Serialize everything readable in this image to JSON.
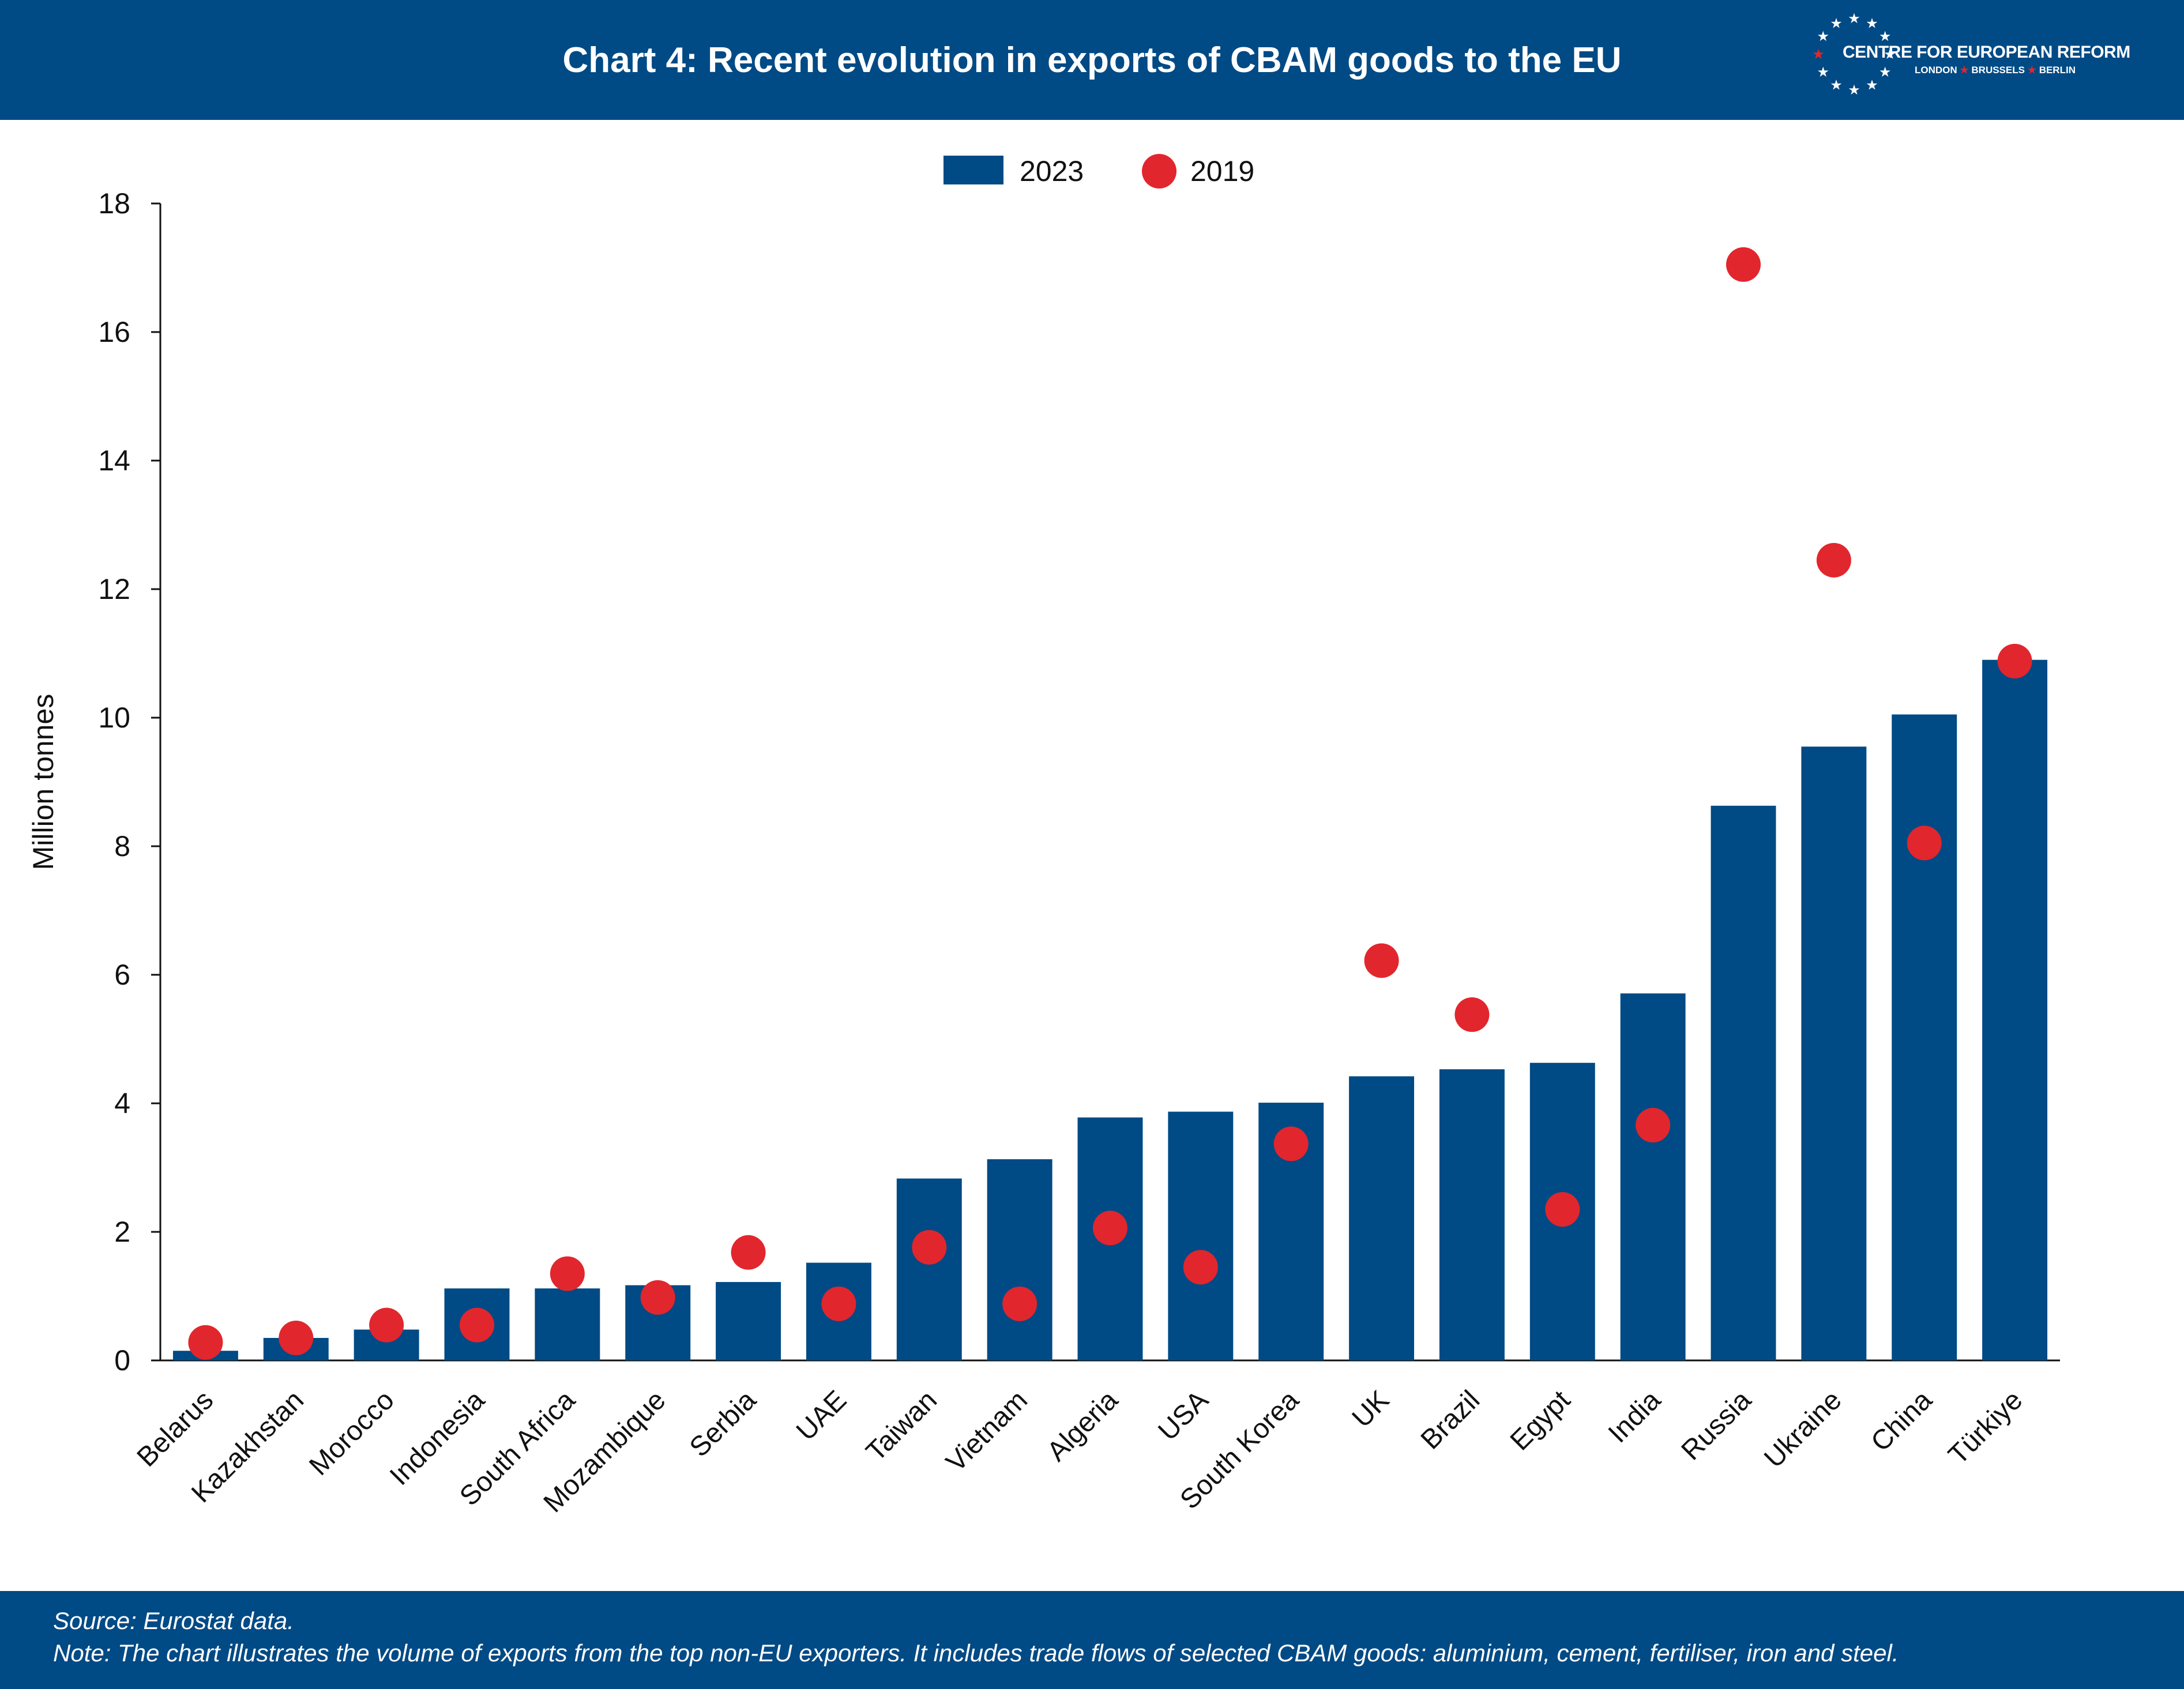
{
  "header": {
    "title": "Chart 4: Recent evolution in exports of CBAM goods to the EU",
    "logo_name": "CENTRE FOR EUROPEAN REFORM",
    "logo_cities": [
      "LONDON",
      "BRUSSELS",
      "BERLIN"
    ]
  },
  "colors": {
    "header_bg": "#004A85",
    "bar": "#004A85",
    "dot": "#E2262D",
    "logo_star_accent": "#E2262D"
  },
  "chart_data": {
    "type": "bar",
    "title": "Chart 4: Recent evolution in exports of CBAM goods to the EU",
    "xlabel": "",
    "ylabel": "Million tonnes",
    "ylim": [
      0,
      18
    ],
    "yticks": [
      0,
      2,
      4,
      6,
      8,
      10,
      12,
      14,
      16,
      18
    ],
    "grid": false,
    "legend_position": "top-center",
    "categories": [
      "Belarus",
      "Kazakhstan",
      "Morocco",
      "Indonesia",
      "South Africa",
      "Mozambique",
      "Serbia",
      "UAE",
      "Taiwan",
      "Vietnam",
      "Algeria",
      "USA",
      "South Korea",
      "UK",
      "Brazil",
      "Egypt",
      "India",
      "Russia",
      "Ukraine",
      "China",
      "Türkiye"
    ],
    "series": [
      {
        "name": "2023",
        "kind": "bar",
        "color": "#004A85",
        "values": [
          0.15,
          0.35,
          0.48,
          1.12,
          1.12,
          1.17,
          1.22,
          1.52,
          2.83,
          3.13,
          3.78,
          3.87,
          4.01,
          4.42,
          4.53,
          4.63,
          5.71,
          8.63,
          9.55,
          10.05,
          10.9
        ]
      },
      {
        "name": "2019",
        "kind": "dot",
        "color": "#E2262D",
        "values": [
          0.28,
          0.35,
          0.55,
          0.55,
          1.35,
          0.98,
          1.68,
          0.88,
          1.76,
          0.88,
          2.06,
          1.45,
          3.37,
          6.22,
          5.38,
          2.35,
          3.66,
          17.05,
          12.45,
          8.05,
          10.88
        ]
      }
    ]
  },
  "footer": {
    "source": "Source: Eurostat data.",
    "note": "Note: The chart illustrates the volume of exports from the top non-EU exporters. It includes trade flows of selected CBAM goods: aluminium, cement, fertiliser, iron and steel."
  }
}
